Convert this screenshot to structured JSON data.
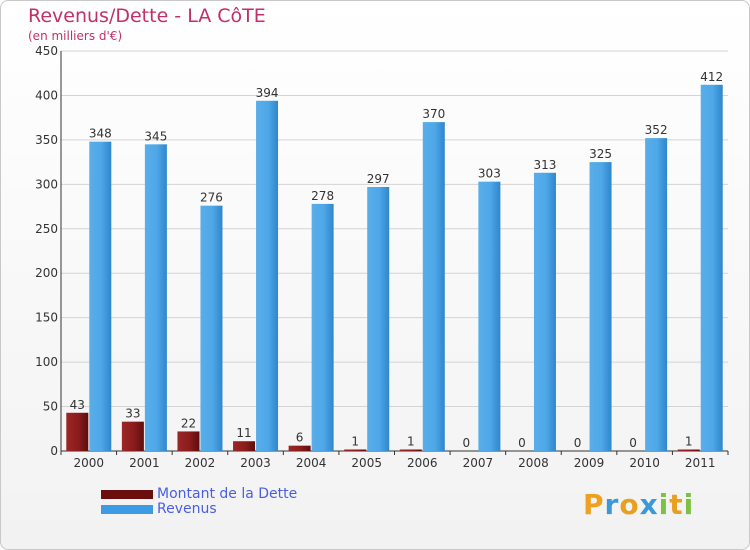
{
  "title": "Revenus/Dette - LA CôTE",
  "subtitle": "(en milliers d'€)",
  "colors": {
    "debt": "#7a1414",
    "revenue": "#3d9be3",
    "title": "#c0306a",
    "axis": "#333333"
  },
  "legend": [
    {
      "label": "Montant de la Dette",
      "color": "#7a1414"
    },
    {
      "label": "Revenus",
      "color": "#3d9be3"
    }
  ],
  "brand": {
    "text": "Proxiti",
    "letters": [
      "P",
      "r",
      "o",
      "x",
      "i",
      "t",
      "i"
    ]
  },
  "chart_data": {
    "type": "bar",
    "title": "Revenus/Dette - LA CôTE",
    "subtitle": "(en milliers d'€)",
    "categories": [
      "2000",
      "2001",
      "2002",
      "2003",
      "2004",
      "2005",
      "2006",
      "2007",
      "2008",
      "2009",
      "2010",
      "2011"
    ],
    "series": [
      {
        "name": "Montant de la Dette",
        "values": [
          43,
          33,
          22,
          11,
          6,
          1,
          1,
          0,
          0,
          0,
          0,
          1
        ]
      },
      {
        "name": "Revenus",
        "values": [
          348,
          345,
          276,
          394,
          278,
          297,
          370,
          303,
          313,
          325,
          352,
          412
        ]
      }
    ],
    "ylim": [
      0,
      450
    ],
    "yticks": [
      0,
      50,
      100,
      150,
      200,
      250,
      300,
      350,
      400,
      450
    ],
    "grid": true,
    "legend_position": "bottom-left"
  }
}
